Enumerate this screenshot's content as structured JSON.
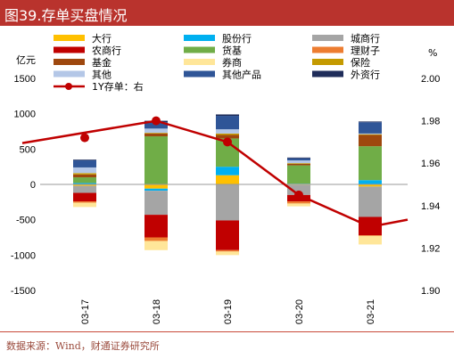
{
  "header": {
    "title": "图39.存单买盘情况"
  },
  "footer": {
    "source": "数据来源：Wind，财通证券研究所"
  },
  "chart_data": {
    "type": "bar",
    "stacked": true,
    "categories": [
      "03-17",
      "03-18",
      "03-19",
      "03-20",
      "03-21"
    ],
    "left_axis": {
      "unit": "亿元",
      "ylim": [
        -1500,
        1500
      ],
      "ticks": [
        -1500,
        -1000,
        -500,
        0,
        500,
        1000,
        1500
      ]
    },
    "right_axis": {
      "unit": "%",
      "ylim": [
        1.9,
        2.0
      ],
      "ticks": [
        "1.90",
        "1.92",
        "1.94",
        "1.96",
        "1.98",
        "2.00"
      ]
    },
    "legend_placement": "top",
    "series": [
      {
        "name": "大行",
        "color": "#ffc000",
        "values": [
          -20,
          -60,
          130,
          -10,
          -30
        ]
      },
      {
        "name": "股份行",
        "color": "#00b0f0",
        "values": [
          20,
          -30,
          120,
          10,
          60
        ]
      },
      {
        "name": "城商行",
        "color": "#a5a5a5",
        "values": [
          -100,
          -340,
          -510,
          -140,
          -430
        ]
      },
      {
        "name": "农商行",
        "color": "#c00000",
        "values": [
          -120,
          -320,
          -420,
          -90,
          -260
        ]
      },
      {
        "name": "货基",
        "color": "#70ad47",
        "values": [
          80,
          680,
          400,
          260,
          480
        ]
      },
      {
        "name": "理财子",
        "color": "#ed7d31",
        "values": [
          -20,
          -50,
          -20,
          -30,
          -10
        ]
      },
      {
        "name": "基金",
        "color": "#9e480e",
        "values": [
          40,
          40,
          50,
          20,
          160
        ]
      },
      {
        "name": "券商",
        "color": "#ffe699",
        "values": [
          -60,
          -130,
          -50,
          -40,
          -120
        ]
      },
      {
        "name": "保险",
        "color": "#c49a00",
        "values": [
          20,
          10,
          20,
          10,
          10
        ]
      },
      {
        "name": "其他",
        "color": "#b4c7e7",
        "values": [
          80,
          60,
          60,
          40,
          10
        ]
      },
      {
        "name": "其他产品",
        "color": "#2f5597",
        "values": [
          100,
          90,
          190,
          30,
          160
        ]
      },
      {
        "name": "外资行",
        "color": "#1f2d5a",
        "values": [
          10,
          20,
          20,
          10,
          10
        ]
      }
    ],
    "line": {
      "name": "1Y存单：右",
      "color": "#c00000",
      "values": [
        1.972,
        1.98,
        1.97,
        1.945,
        1.93
      ]
    }
  }
}
